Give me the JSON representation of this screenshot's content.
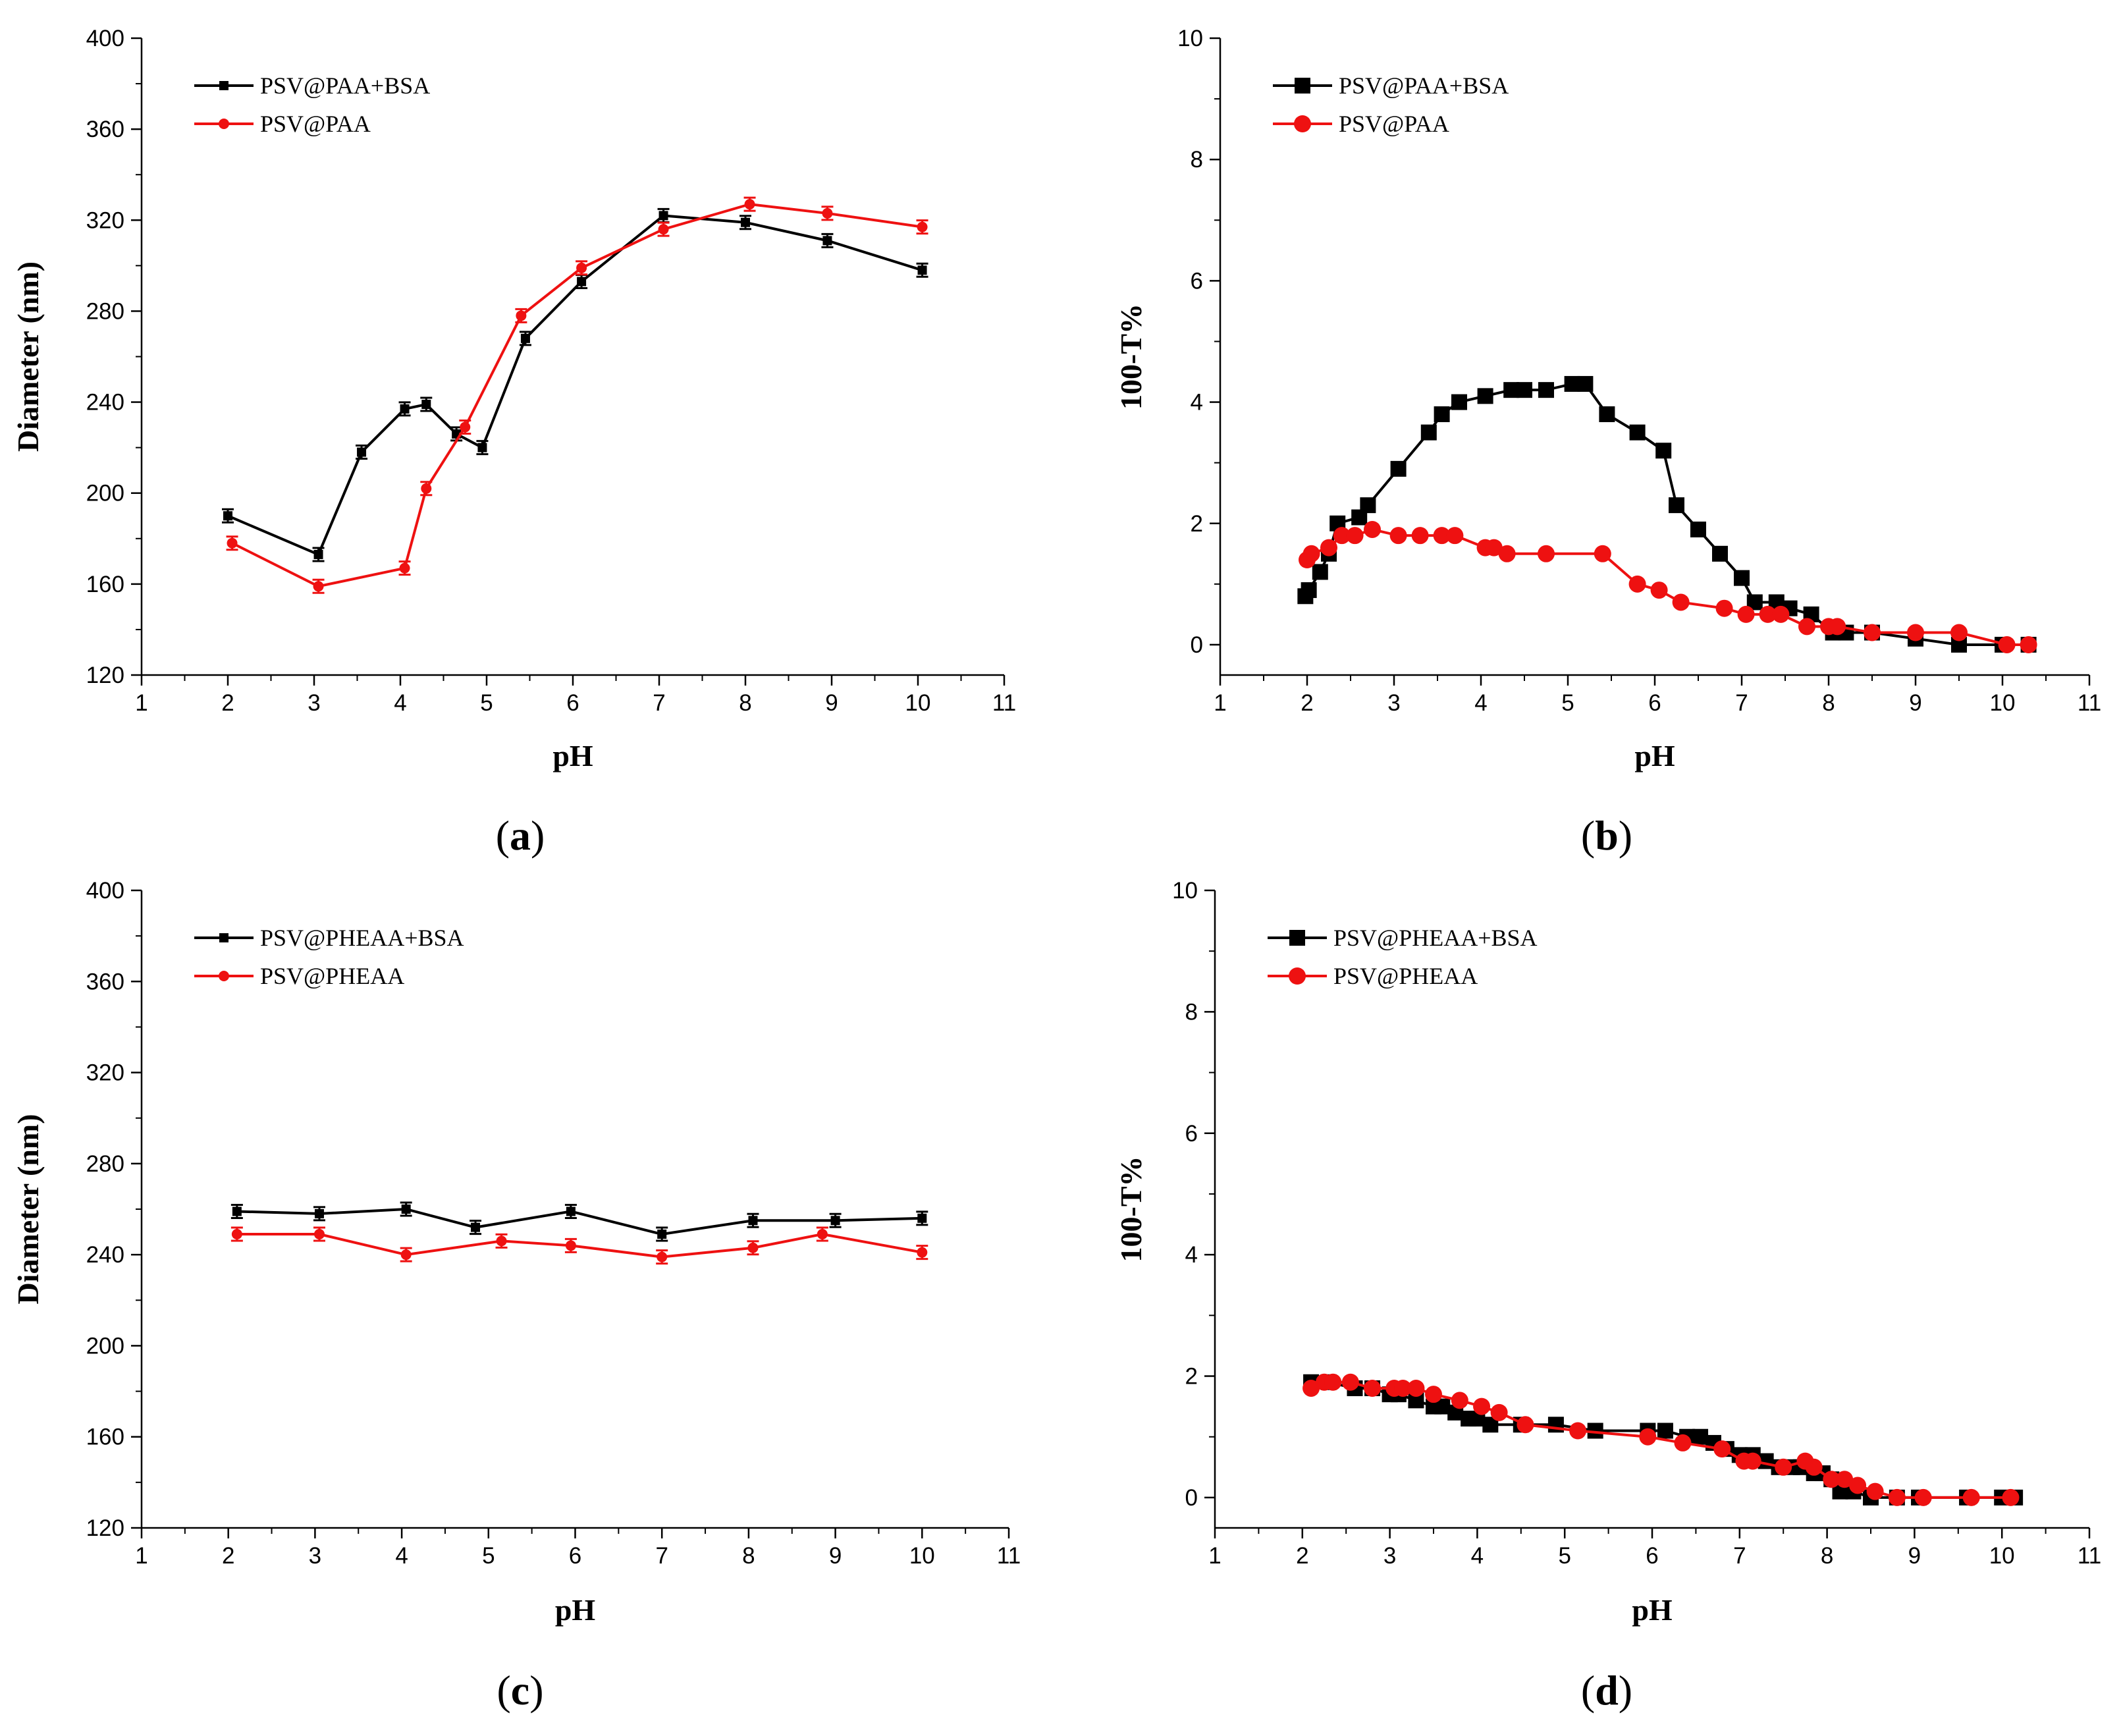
{
  "colors": {
    "black_series": "#000000",
    "red_series": "#ee1111",
    "axis": "#000000",
    "background": "#ffffff"
  },
  "chart_data": [
    {
      "id": "a",
      "type": "line",
      "panel_label": "(a)",
      "xlabel": "pH",
      "ylabel": "Diameter (nm)",
      "xlim": [
        1,
        11
      ],
      "ylim": [
        120,
        400
      ],
      "xticks": [
        1,
        2,
        3,
        4,
        5,
        6,
        7,
        8,
        9,
        10,
        11
      ],
      "yticks": [
        120,
        160,
        200,
        240,
        280,
        320,
        360,
        400
      ],
      "legend_position": "top-left",
      "series": [
        {
          "name": "PSV@PAA+BSA",
          "color": "#000000",
          "marker": "square",
          "marker_size": "small",
          "error_bars": true,
          "x": [
            2.0,
            3.05,
            3.55,
            4.05,
            4.3,
            4.65,
            4.95,
            5.45,
            6.1,
            7.05,
            8.0,
            8.95,
            10.05
          ],
          "y": [
            190,
            173,
            218,
            237,
            239,
            226,
            220,
            268,
            293,
            322,
            319,
            311,
            298
          ]
        },
        {
          "name": "PSV@PAA",
          "color": "#ee1111",
          "marker": "circle",
          "marker_size": "small",
          "error_bars": true,
          "x": [
            2.05,
            3.05,
            4.05,
            4.3,
            4.75,
            5.4,
            6.1,
            7.05,
            8.05,
            8.95,
            10.05
          ],
          "y": [
            178,
            159,
            167,
            202,
            229,
            278,
            299,
            316,
            327,
            323,
            317
          ]
        }
      ]
    },
    {
      "id": "b",
      "type": "line",
      "panel_label": "(b)",
      "xlabel": "pH",
      "ylabel": "100-T%",
      "xlim": [
        1,
        11
      ],
      "ylim": [
        -0.5,
        10
      ],
      "xticks": [
        1,
        2,
        3,
        4,
        5,
        6,
        7,
        8,
        9,
        10,
        11
      ],
      "yticks": [
        0,
        2,
        4,
        6,
        8,
        10
      ],
      "legend_position": "top-left",
      "series": [
        {
          "name": "PSV@PAA+BSA",
          "color": "#000000",
          "marker": "square",
          "marker_size": "large",
          "error_bars": false,
          "x": [
            1.98,
            2.02,
            2.15,
            2.25,
            2.35,
            2.6,
            2.7,
            3.05,
            3.4,
            3.55,
            3.75,
            4.05,
            4.35,
            4.5,
            4.75,
            5.05,
            5.2,
            5.45,
            5.8,
            6.1,
            6.25,
            6.5,
            6.75,
            7.0,
            7.15,
            7.4,
            7.55,
            7.8,
            8.05,
            8.2,
            8.5,
            9.0,
            9.5,
            10.0,
            10.3
          ],
          "y": [
            0.8,
            0.9,
            1.2,
            1.5,
            2.0,
            2.1,
            2.3,
            2.9,
            3.5,
            3.8,
            4.0,
            4.1,
            4.2,
            4.2,
            4.2,
            4.3,
            4.3,
            3.8,
            3.5,
            3.2,
            2.3,
            1.9,
            1.5,
            1.1,
            0.7,
            0.7,
            0.6,
            0.5,
            0.2,
            0.2,
            0.2,
            0.1,
            0.0,
            0.0,
            0.0
          ]
        },
        {
          "name": "PSV@PAA",
          "color": "#ee1111",
          "marker": "circle",
          "marker_size": "large",
          "error_bars": false,
          "x": [
            2.0,
            2.05,
            2.25,
            2.4,
            2.55,
            2.75,
            3.05,
            3.3,
            3.55,
            3.7,
            4.05,
            4.15,
            4.3,
            4.75,
            5.4,
            5.8,
            6.05,
            6.3,
            6.8,
            7.05,
            7.3,
            7.45,
            7.75,
            8.0,
            8.1,
            8.5,
            9.0,
            9.5,
            10.05,
            10.3
          ],
          "y": [
            1.4,
            1.5,
            1.6,
            1.8,
            1.8,
            1.9,
            1.8,
            1.8,
            1.8,
            1.8,
            1.6,
            1.6,
            1.5,
            1.5,
            1.5,
            1.0,
            0.9,
            0.7,
            0.6,
            0.5,
            0.5,
            0.5,
            0.3,
            0.3,
            0.3,
            0.2,
            0.2,
            0.2,
            0.0,
            0.0
          ]
        }
      ]
    },
    {
      "id": "c",
      "type": "line",
      "panel_label": "(c)",
      "xlabel": "pH",
      "ylabel": "Diameter (nm)",
      "xlim": [
        1,
        11
      ],
      "ylim": [
        120,
        400
      ],
      "xticks": [
        1,
        2,
        3,
        4,
        5,
        6,
        7,
        8,
        9,
        10,
        11
      ],
      "yticks": [
        120,
        160,
        200,
        240,
        280,
        320,
        360,
        400
      ],
      "legend_position": "top-left",
      "series": [
        {
          "name": "PSV@PHEAA+BSA",
          "color": "#000000",
          "marker": "square",
          "marker_size": "small",
          "error_bars": true,
          "x": [
            2.1,
            3.05,
            4.05,
            4.85,
            5.95,
            7.0,
            8.05,
            9.0,
            10.0
          ],
          "y": [
            259,
            258,
            260,
            252,
            259,
            249,
            255,
            255,
            256
          ]
        },
        {
          "name": "PSV@PHEAA",
          "color": "#ee1111",
          "marker": "circle",
          "marker_size": "small",
          "error_bars": true,
          "x": [
            2.1,
            3.05,
            4.05,
            5.15,
            5.95,
            7.0,
            8.05,
            8.85,
            10.0
          ],
          "y": [
            249,
            249,
            240,
            246,
            244,
            239,
            243,
            249,
            241
          ]
        }
      ]
    },
    {
      "id": "d",
      "type": "line",
      "panel_label": "(d)",
      "xlabel": "pH",
      "ylabel": "100-T%",
      "xlim": [
        1,
        11
      ],
      "ylim": [
        -0.5,
        10
      ],
      "xticks": [
        1,
        2,
        3,
        4,
        5,
        6,
        7,
        8,
        9,
        10,
        11
      ],
      "yticks": [
        0,
        2,
        4,
        6,
        8,
        10
      ],
      "legend_position": "top-left",
      "series": [
        {
          "name": "PSV@PHEAA+BSA",
          "color": "#000000",
          "marker": "square",
          "marker_size": "large",
          "error_bars": false,
          "x": [
            2.1,
            2.3,
            2.6,
            2.8,
            3.0,
            3.1,
            3.3,
            3.5,
            3.6,
            3.75,
            3.9,
            4.0,
            4.15,
            4.5,
            4.9,
            5.35,
            5.95,
            6.15,
            6.4,
            6.55,
            6.7,
            6.85,
            7.0,
            7.15,
            7.3,
            7.45,
            7.6,
            7.7,
            7.85,
            7.95,
            8.05,
            8.15,
            8.3,
            8.5,
            8.8,
            9.05,
            9.6,
            10.0,
            10.15
          ],
          "y": [
            1.9,
            1.9,
            1.8,
            1.8,
            1.7,
            1.7,
            1.6,
            1.5,
            1.5,
            1.4,
            1.3,
            1.3,
            1.2,
            1.2,
            1.2,
            1.1,
            1.1,
            1.1,
            1.0,
            1.0,
            0.9,
            0.8,
            0.7,
            0.7,
            0.6,
            0.5,
            0.5,
            0.5,
            0.4,
            0.4,
            0.3,
            0.1,
            0.1,
            0.0,
            0.0,
            0.0,
            0.0,
            0.0,
            0.0
          ]
        },
        {
          "name": "PSV@PHEAA",
          "color": "#ee1111",
          "marker": "circle",
          "marker_size": "large",
          "error_bars": false,
          "x": [
            2.1,
            2.25,
            2.35,
            2.55,
            2.8,
            3.05,
            3.15,
            3.3,
            3.5,
            3.8,
            4.05,
            4.25,
            4.55,
            5.15,
            5.95,
            6.35,
            6.8,
            7.05,
            7.15,
            7.5,
            7.75,
            7.85,
            8.05,
            8.2,
            8.35,
            8.55,
            8.8,
            9.1,
            9.65,
            10.1
          ],
          "y": [
            1.8,
            1.9,
            1.9,
            1.9,
            1.8,
            1.8,
            1.8,
            1.8,
            1.7,
            1.6,
            1.5,
            1.4,
            1.2,
            1.1,
            1.0,
            0.9,
            0.8,
            0.6,
            0.6,
            0.5,
            0.6,
            0.5,
            0.3,
            0.3,
            0.2,
            0.1,
            0.0,
            0.0,
            0.0,
            0.0
          ]
        }
      ]
    }
  ]
}
